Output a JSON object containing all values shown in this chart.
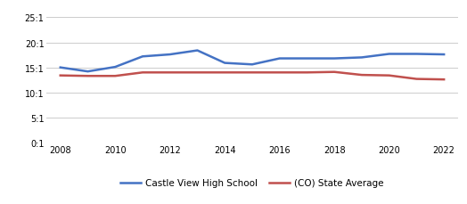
{
  "years": [
    2008,
    2009,
    2010,
    2011,
    2012,
    2013,
    2014,
    2015,
    2016,
    2017,
    2018,
    2019,
    2020,
    2021,
    2022
  ],
  "castle_view": [
    15.0,
    14.2,
    15.1,
    17.2,
    17.6,
    18.4,
    15.9,
    15.6,
    16.8,
    16.8,
    16.8,
    17.0,
    17.7,
    17.7,
    17.6
  ],
  "co_state_avg": [
    13.4,
    13.3,
    13.3,
    14.0,
    14.0,
    14.0,
    14.0,
    14.0,
    14.0,
    14.0,
    14.1,
    13.5,
    13.4,
    12.7,
    12.6
  ],
  "castle_view_color": "#4472c4",
  "co_state_color": "#c0504d",
  "background_color": "#ffffff",
  "grid_color": "#cccccc",
  "ytick_labels": [
    "0:1",
    "5:1",
    "10:1",
    "15:1",
    "20:1",
    "25:1"
  ],
  "ytick_values": [
    0,
    5,
    10,
    15,
    20,
    25
  ],
  "ylim": [
    0,
    27
  ],
  "xlim": [
    2007.5,
    2022.5
  ],
  "xtick_values": [
    2008,
    2010,
    2012,
    2014,
    2016,
    2018,
    2020,
    2022
  ],
  "legend_label_castle": "Castle View High School",
  "legend_label_co": "(CO) State Average",
  "line_width": 1.8
}
